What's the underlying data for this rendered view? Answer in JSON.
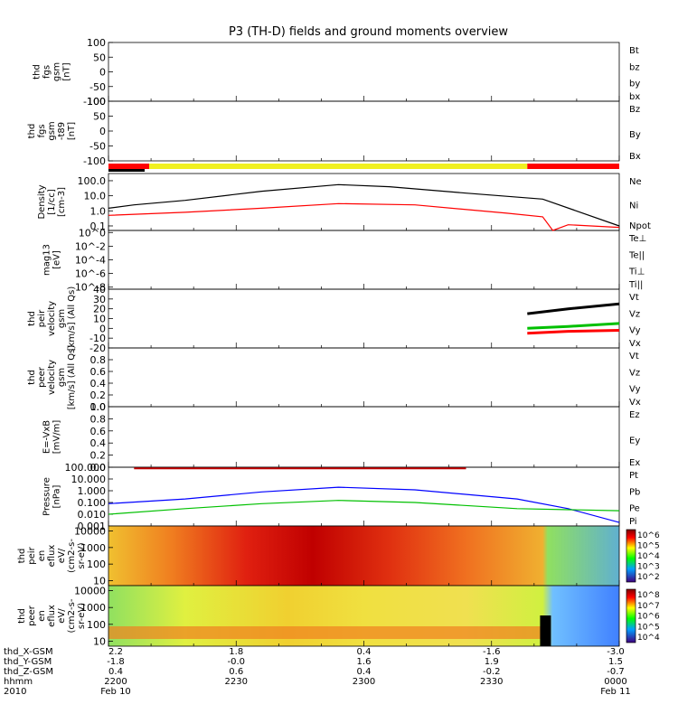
{
  "title": "P3 (TH-D) fields and ground moments overview",
  "colors": {
    "black": "#000000",
    "red": "#ff0000",
    "green": "#00d200",
    "blue": "#0000ff",
    "yellow": "#ffff00",
    "bar_yellow": "#f0f020"
  },
  "panels": [
    {
      "id": "fgs",
      "ylabel": [
        "thd",
        "fgs",
        "gsm",
        "[nT]"
      ],
      "ticks": [
        "100",
        "50",
        "0",
        "-50",
        "-100"
      ],
      "tick_vals": [
        100,
        50,
        0,
        -50,
        -100
      ],
      "ylim": [
        -100,
        100
      ],
      "scale": "linear",
      "legend": [
        {
          "text": "Bt",
          "color": "#000000"
        },
        {
          "text": "bz",
          "color": "#ff0000"
        },
        {
          "text": "by",
          "color": "#00c000"
        },
        {
          "text": "bx",
          "color": "#0000ff"
        }
      ]
    },
    {
      "id": "fgs_t89",
      "ylabel": [
        "thd",
        "fgs",
        "gsm",
        "-t89",
        "[nT]"
      ],
      "ticks": [
        "100",
        "50",
        "0",
        "-50",
        "-100"
      ],
      "tick_vals": [
        100,
        50,
        0,
        -50,
        -100
      ],
      "ylim": [
        -100,
        100
      ],
      "scale": "linear",
      "legend": [
        {
          "text": "Bz",
          "color": "#ff0000"
        },
        {
          "text": "By",
          "color": "#00c000"
        },
        {
          "text": "Bx",
          "color": "#0000ff"
        }
      ]
    },
    {
      "id": "density",
      "ylabel": [
        "Density",
        "[1/cc]",
        "[cm-3]"
      ],
      "ticks": [
        "100.0",
        "10.0",
        "1.0",
        "0.1"
      ],
      "tick_vals": [
        100,
        10,
        1,
        0.1
      ],
      "ylim": [
        0.05,
        300
      ],
      "scale": "log",
      "legend": [
        {
          "text": "Ne",
          "color": "#ff0000"
        },
        {
          "text": "Ni",
          "color": "#000000"
        },
        {
          "text": "Npot",
          "color": "#0000ff"
        }
      ]
    },
    {
      "id": "temp",
      "ylabel": [
        "mag13",
        "[eV]"
      ],
      "ticks": [
        "10^0",
        "10^-2",
        "10^-4",
        "10^-6",
        "10^-8"
      ],
      "tick_vals": [
        1,
        0.01,
        0.0001,
        1e-06,
        1e-08
      ],
      "ylim": [
        5e-09,
        2
      ],
      "scale": "log",
      "legend": [
        {
          "text": "Te⊥",
          "color": "#ff0000"
        },
        {
          "text": "Te||",
          "color": "#000000"
        },
        {
          "text": "Ti⊥",
          "color": "#0000ff"
        },
        {
          "text": "Ti||",
          "color": "#00c000"
        }
      ]
    },
    {
      "id": "peir_vel",
      "ylabel": [
        "thd",
        "peir",
        "velocity",
        "gsm",
        "[km/s] (All Qs)"
      ],
      "ticks": [
        "40",
        "30",
        "20",
        "10",
        "0",
        "-10",
        "-20"
      ],
      "tick_vals": [
        40,
        30,
        20,
        10,
        0,
        -10,
        -20
      ],
      "ylim": [
        -20,
        40
      ],
      "scale": "linear",
      "legend": [
        {
          "text": "Vt",
          "color": "#000000"
        },
        {
          "text": "Vz",
          "color": "#ff0000"
        },
        {
          "text": "Vy",
          "color": "#00c000"
        },
        {
          "text": "Vx",
          "color": "#0000ff"
        }
      ]
    },
    {
      "id": "peer_vel",
      "ylabel": [
        "thd",
        "peer",
        "velocity",
        "gsm",
        "[km/s] (All Qs)"
      ],
      "ticks": [
        "0.8",
        "0.6",
        "0.4",
        "0.2",
        "0.0"
      ],
      "tick_vals": [
        0.8,
        0.6,
        0.4,
        0.2,
        0.0
      ],
      "ylim": [
        0,
        1
      ],
      "scale": "linear",
      "legend": [
        {
          "text": "Vt",
          "color": "#000000"
        },
        {
          "text": "Vz",
          "color": "#ff0000"
        },
        {
          "text": "Vy",
          "color": "#00c000"
        },
        {
          "text": "Vx",
          "color": "#0000ff"
        }
      ]
    },
    {
      "id": "efield",
      "ylabel": [
        "E=-VxB",
        "[mV/m]"
      ],
      "ticks": [
        "1.0",
        "0.8",
        "0.6",
        "0.4",
        "0.2",
        "0.0"
      ],
      "tick_vals": [
        1.0,
        0.8,
        0.6,
        0.4,
        0.2,
        0.0
      ],
      "ylim": [
        0,
        1
      ],
      "scale": "linear",
      "legend": [
        {
          "text": "Ez",
          "color": "#ff0000"
        },
        {
          "text": "Ey",
          "color": "#00c000"
        },
        {
          "text": "Ex",
          "color": "#0000ff"
        }
      ]
    },
    {
      "id": "pressure",
      "ylabel": [
        "Pressure",
        "[nPa]"
      ],
      "ticks": [
        "100.000",
        "10.000",
        "1.000",
        "0.100",
        "0.010",
        "0.001"
      ],
      "tick_vals": [
        100,
        10,
        1,
        0.1,
        0.01,
        0.001
      ],
      "ylim": [
        0.001,
        100
      ],
      "scale": "log",
      "legend": [
        {
          "text": "Pt",
          "color": "#000000"
        },
        {
          "text": "Pb",
          "color": "#ff0000"
        },
        {
          "text": "Pe",
          "color": "#00c000"
        },
        {
          "text": "Pi",
          "color": "#0000ff"
        }
      ]
    },
    {
      "id": "peir_spec",
      "ylabel": [
        "thd",
        "peir",
        "en",
        "eflux",
        "eV/",
        "(cm2-s-",
        "sr-eV)"
      ],
      "ticks": [
        "10000",
        "1000",
        "100",
        "10"
      ],
      "tick_vals": [
        10000,
        1000,
        100,
        10
      ],
      "ylim": [
        5,
        20000
      ],
      "scale": "log",
      "cbar": [
        "10^6",
        "10^5",
        "10^4",
        "10^3",
        "10^2"
      ]
    },
    {
      "id": "peer_spec",
      "ylabel": [
        "thd",
        "peer",
        "en",
        "eflux",
        "eV/",
        "(cm2-s-",
        "sr-eV)"
      ],
      "ticks": [
        "10000",
        "1000",
        "100",
        "10"
      ],
      "tick_vals": [
        10000,
        1000,
        100,
        10
      ],
      "ylim": [
        5,
        20000
      ],
      "scale": "log",
      "cbar": [
        "10^8",
        "10^7",
        "10^6",
        "10^5",
        "10^4"
      ]
    }
  ],
  "footer": {
    "rows": [
      {
        "label": "thd_X-GSM",
        "values": [
          "2.2",
          "1.8",
          "0.4",
          "-1.6",
          "-3.0"
        ]
      },
      {
        "label": "thd_Y-GSM",
        "values": [
          "-1.8",
          "-0.0",
          "1.6",
          "1.9",
          "1.5"
        ]
      },
      {
        "label": "thd_Z-GSM",
        "values": [
          "0.4",
          "0.6",
          "0.4",
          "-0.2",
          "-0.7"
        ]
      },
      {
        "label": "hhmm",
        "values": [
          "2200",
          "2230",
          "2300",
          "2330",
          "0000"
        ]
      },
      {
        "label": "2010",
        "values": [
          "Feb 10",
          "",
          "",
          "",
          "Feb 11"
        ]
      }
    ]
  },
  "chart_data": {
    "type": "line",
    "title": "P3 (TH-D) fields and ground moments overview",
    "x": [
      "2200",
      "2230",
      "2300",
      "2330",
      "0000"
    ],
    "density_Ni": [
      [
        0,
        1.5
      ],
      [
        0.05,
        2.5
      ],
      [
        0.15,
        5
      ],
      [
        0.3,
        20
      ],
      [
        0.45,
        55
      ],
      [
        0.55,
        40
      ],
      [
        0.7,
        15
      ],
      [
        0.85,
        6
      ],
      [
        1.0,
        0.1
      ]
    ],
    "density_Ne": [
      [
        0,
        0.5
      ],
      [
        0.15,
        0.8
      ],
      [
        0.3,
        1.5
      ],
      [
        0.45,
        3
      ],
      [
        0.6,
        2.5
      ],
      [
        0.78,
        0.7
      ],
      [
        0.85,
        0.4
      ],
      [
        0.87,
        0.05
      ],
      [
        0.9,
        0.12
      ],
      [
        1.0,
        0.08
      ]
    ],
    "pressure_Pi": [
      [
        0,
        0.08
      ],
      [
        0.15,
        0.2
      ],
      [
        0.3,
        0.8
      ],
      [
        0.45,
        2.0
      ],
      [
        0.6,
        1.2
      ],
      [
        0.8,
        0.2
      ],
      [
        0.9,
        0.03
      ],
      [
        1.0,
        0.002
      ]
    ],
    "pressure_Pe": [
      [
        0,
        0.01
      ],
      [
        0.15,
        0.03
      ],
      [
        0.3,
        0.08
      ],
      [
        0.45,
        0.15
      ],
      [
        0.6,
        0.1
      ],
      [
        0.8,
        0.03
      ],
      [
        1.0,
        0.02
      ]
    ],
    "pressure_Pb": [
      [
        0.05,
        80
      ],
      [
        0.3,
        80
      ],
      [
        0.7,
        80
      ]
    ],
    "peir_velocity_Vt": [
      [
        0.82,
        15
      ],
      [
        0.9,
        20
      ],
      [
        1.0,
        25
      ]
    ],
    "peir_velocity_Vy": [
      [
        0.82,
        0
      ],
      [
        0.9,
        2
      ],
      [
        1.0,
        5
      ]
    ],
    "peir_velocity_Vz": [
      [
        0.82,
        -5
      ],
      [
        0.9,
        -3
      ],
      [
        1.0,
        -2
      ]
    ]
  }
}
